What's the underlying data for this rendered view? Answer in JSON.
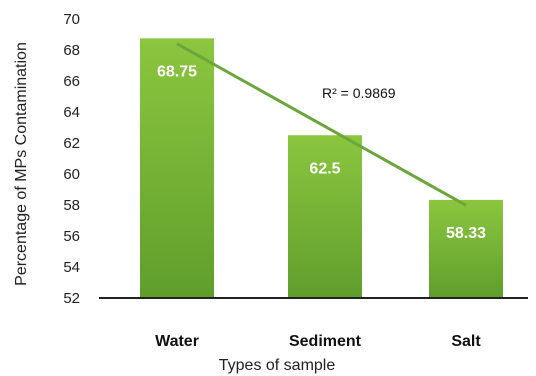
{
  "chart_data": {
    "type": "bar",
    "categories": [
      "Water",
      "Sediment",
      "Salt"
    ],
    "values": [
      68.75,
      62.5,
      58.33
    ],
    "data_labels": [
      "68.75",
      "62.5",
      "58.33"
    ],
    "title": "",
    "xlabel": "Types of sample",
    "ylabel": "Percentage of MPs Contamination",
    "ylim": [
      52,
      70
    ],
    "yticks": [
      "52",
      "54",
      "56",
      "58",
      "60",
      "62",
      "64",
      "66",
      "68",
      "70"
    ],
    "grid": false,
    "trendline": {
      "type": "linear",
      "r_squared_label": "R² = 0.9869"
    },
    "colors": {
      "bar_top": "#8cc63f",
      "bar_bottom": "#5f9e2c",
      "trend": "#6aa63a",
      "axis": "#222222"
    }
  }
}
